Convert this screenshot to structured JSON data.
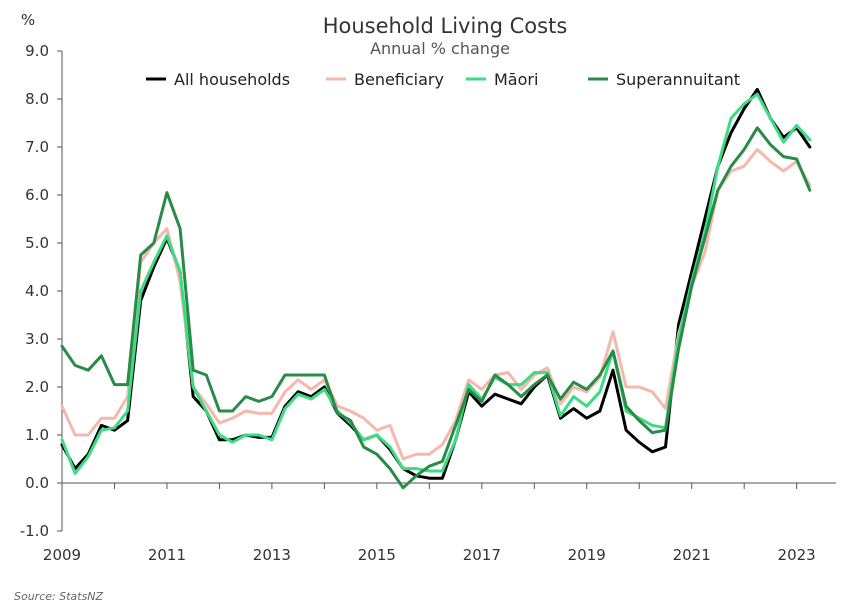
{
  "chart_data": {
    "type": "line",
    "title": "Household Living Costs",
    "subtitle": "Annual % change",
    "ylabel": "%",
    "xlabel": "",
    "source": "Source: StatsNZ",
    "ylim": [
      -1.0,
      9.0
    ],
    "xlim": [
      2009.0,
      2023.75
    ],
    "yticks": [
      "9.0",
      "8.0",
      "7.0",
      "6.0",
      "5.0",
      "4.0",
      "3.0",
      "2.0",
      "1.0",
      "0.0",
      "-1.0"
    ],
    "xticks": [
      "2009",
      "2011",
      "2013",
      "2015",
      "2017",
      "2019",
      "2021",
      "2023"
    ],
    "legend_position": "top-center",
    "x_start": 2009.0,
    "x_step": 0.25,
    "series": [
      {
        "name": "All households",
        "color": "#000000",
        "values": [
          0.8,
          0.3,
          0.6,
          1.2,
          1.1,
          1.3,
          3.8,
          4.5,
          5.1,
          4.4,
          1.8,
          1.5,
          0.9,
          0.9,
          1.0,
          0.95,
          0.95,
          1.6,
          1.9,
          1.8,
          2.0,
          1.45,
          1.2,
          0.9,
          1.0,
          0.7,
          0.3,
          0.15,
          0.1,
          0.1,
          0.9,
          1.9,
          1.6,
          1.85,
          1.75,
          1.65,
          2.0,
          2.25,
          1.35,
          1.55,
          1.35,
          1.5,
          2.35,
          1.1,
          0.85,
          0.65,
          0.75,
          3.3,
          4.4,
          5.5,
          6.6,
          7.3,
          7.8,
          8.2,
          7.6,
          7.2,
          7.4,
          7.0
        ]
      },
      {
        "name": "Beneficiary",
        "color": "#f4b8ac",
        "values": [
          1.6,
          1.0,
          1.0,
          1.35,
          1.35,
          1.8,
          4.6,
          5.0,
          5.3,
          4.2,
          2.0,
          1.65,
          1.25,
          1.35,
          1.5,
          1.45,
          1.45,
          1.9,
          2.15,
          1.95,
          2.15,
          1.6,
          1.5,
          1.35,
          1.1,
          1.2,
          0.5,
          0.6,
          0.6,
          0.8,
          1.3,
          2.15,
          1.95,
          2.25,
          2.3,
          1.95,
          2.25,
          2.4,
          1.65,
          2.0,
          1.9,
          2.2,
          3.15,
          2.0,
          2.0,
          1.9,
          1.55,
          3.1,
          4.1,
          4.8,
          6.1,
          6.5,
          6.6,
          6.95,
          6.7,
          6.5,
          6.7,
          6.2
        ]
      },
      {
        "name": "Māori",
        "color": "#3ddc84",
        "values": [
          0.9,
          0.2,
          0.55,
          1.1,
          1.15,
          1.5,
          4.0,
          4.6,
          5.15,
          4.4,
          2.0,
          1.5,
          1.0,
          0.85,
          1.0,
          1.0,
          0.9,
          1.55,
          1.85,
          1.75,
          1.95,
          1.5,
          1.25,
          0.9,
          1.0,
          0.75,
          0.3,
          0.3,
          0.25,
          0.25,
          0.9,
          2.05,
          1.75,
          2.2,
          2.05,
          2.05,
          2.3,
          2.3,
          1.4,
          1.8,
          1.6,
          1.9,
          2.75,
          1.5,
          1.35,
          1.2,
          1.15,
          3.0,
          4.2,
          5.2,
          6.6,
          7.6,
          7.9,
          8.1,
          7.6,
          7.1,
          7.45,
          7.15
        ]
      },
      {
        "name": "Superannuitant",
        "color": "#2a8b48",
        "values": [
          2.85,
          2.45,
          2.35,
          2.65,
          2.05,
          2.05,
          4.75,
          5.0,
          6.05,
          5.3,
          2.35,
          2.25,
          1.5,
          1.5,
          1.8,
          1.7,
          1.8,
          2.25,
          2.25,
          2.25,
          2.25,
          1.45,
          1.3,
          0.75,
          0.6,
          0.3,
          -0.1,
          0.15,
          0.35,
          0.45,
          1.2,
          1.95,
          1.7,
          2.25,
          2.05,
          1.8,
          2.05,
          2.25,
          1.75,
          2.1,
          1.95,
          2.25,
          2.75,
          1.6,
          1.3,
          1.05,
          1.1,
          2.8,
          4.1,
          5.1,
          6.1,
          6.6,
          6.95,
          7.4,
          7.05,
          6.8,
          6.75,
          6.1
        ]
      }
    ]
  }
}
